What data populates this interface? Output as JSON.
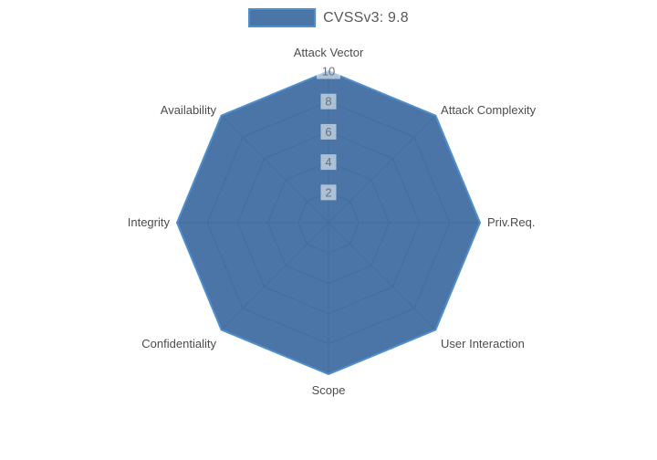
{
  "background": "#ffffff",
  "legend": {
    "label": "CVSSv3: 9.8",
    "swatch_fill": "#4b75a6",
    "swatch_border": "#4f8fce",
    "text_color": "#58595b",
    "position": "top-center"
  },
  "chart_data": {
    "type": "radar",
    "categories": [
      "Attack Vector",
      "Attack Complexity",
      "Priv.Req.",
      "User Interaction",
      "Scope",
      "Confidentiality",
      "Integrity",
      "Availability"
    ],
    "series": [
      {
        "name": "CVSSv3: 9.8",
        "values": [
          10,
          10,
          10,
          10,
          10,
          10,
          10,
          10
        ]
      }
    ],
    "radial_ticks": [
      2,
      4,
      6,
      8,
      10
    ],
    "radial_range": [
      0,
      10
    ],
    "grid": true,
    "grid_shape": "polygon",
    "legend_position": "top-center",
    "fill_color": "rgba(43,93,150,0.85)",
    "line_color": "#4f8fce",
    "grid_color": "#c8c8c8",
    "tick_color": "#6b7078",
    "tick_bg": "rgba(255,255,255,0.55)",
    "label_color": "#4d4d4d"
  }
}
